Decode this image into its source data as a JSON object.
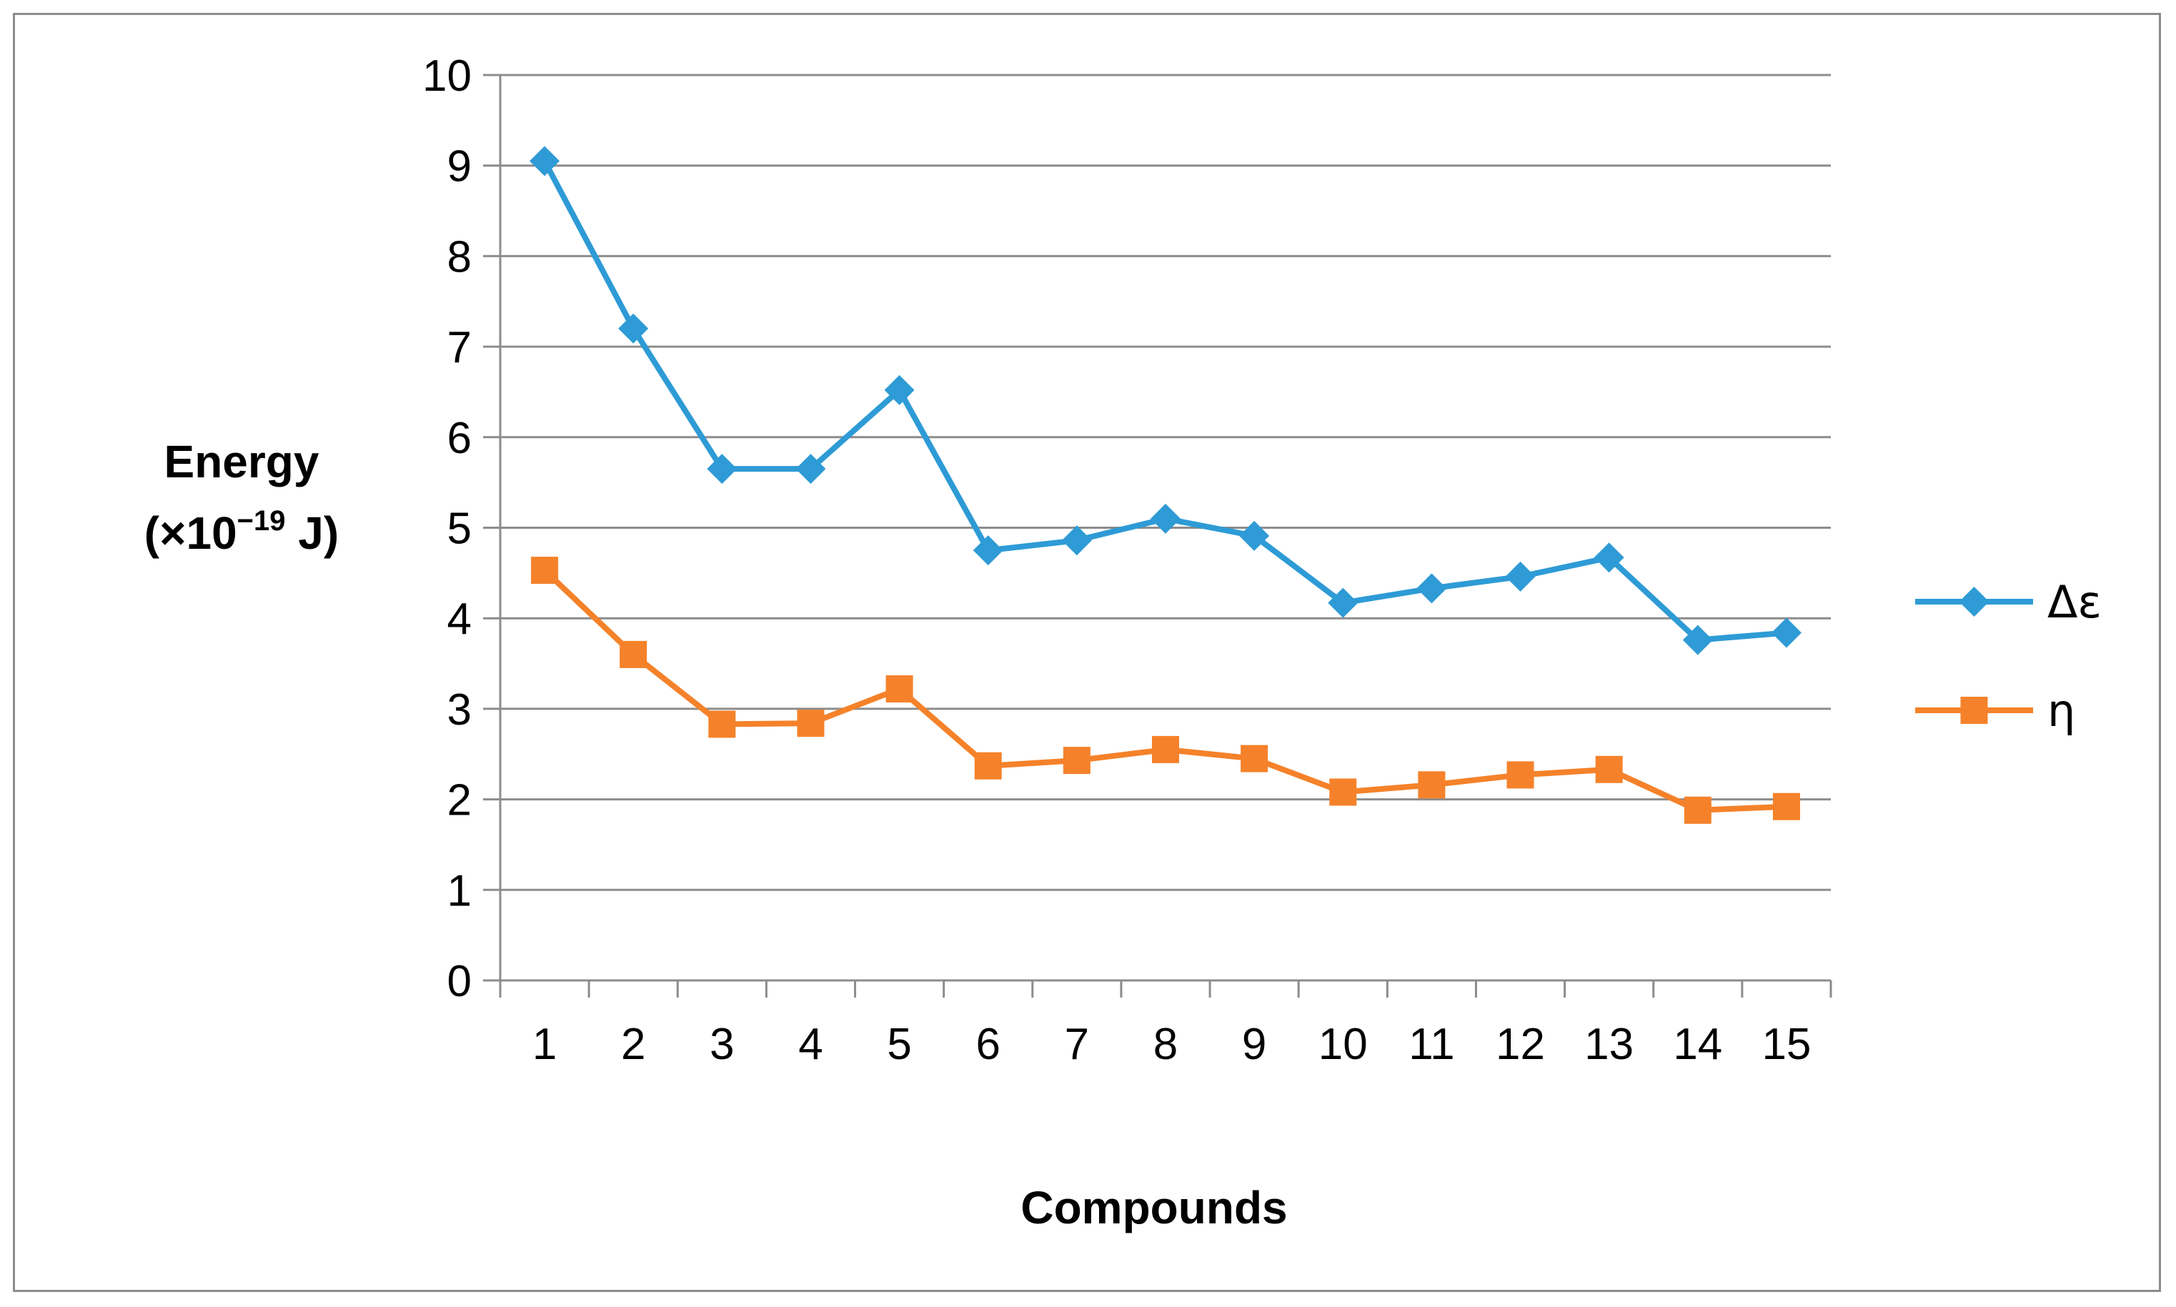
{
  "chart_data": {
    "type": "line",
    "title": "",
    "xlabel": "Compounds",
    "ylabel_line1": "Energy",
    "ylabel_line2": "(×10",
    "ylabel_exp": "−19",
    "ylabel_unit": " J)",
    "categories": [
      "1",
      "2",
      "3",
      "4",
      "5",
      "6",
      "7",
      "8",
      "9",
      "10",
      "11",
      "12",
      "13",
      "14",
      "15"
    ],
    "ylim": [
      0,
      10
    ],
    "yticks": [
      "0",
      "1",
      "2",
      "3",
      "4",
      "5",
      "6",
      "7",
      "8",
      "9",
      "10"
    ],
    "grid": true,
    "legend_position": "right",
    "series": [
      {
        "name": "Δε",
        "color": "#2e9bd6",
        "marker": "diamond",
        "values": [
          9.05,
          7.2,
          5.65,
          5.65,
          6.52,
          4.75,
          4.86,
          5.1,
          4.91,
          4.17,
          4.33,
          4.46,
          4.67,
          3.76,
          3.84
        ]
      },
      {
        "name": "η",
        "color": "#f5822a",
        "marker": "square",
        "values": [
          4.53,
          3.6,
          2.83,
          2.84,
          3.22,
          2.37,
          2.43,
          2.55,
          2.45,
          2.08,
          2.16,
          2.27,
          2.33,
          1.88,
          1.92
        ]
      }
    ]
  }
}
